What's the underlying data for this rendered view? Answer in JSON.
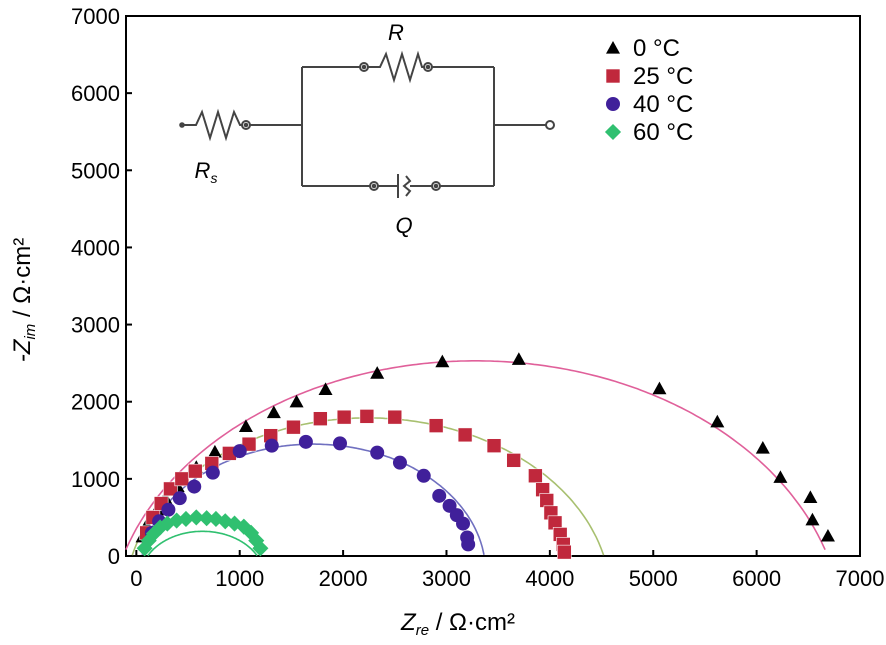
{
  "chart_data": {
    "type": "scatter",
    "xlabel": {
      "main": "Z",
      "sub": "re",
      "unit": " / Ω·cm²"
    },
    "ylabel": {
      "main": "-Z",
      "sub": "im",
      "unit": " / Ω·cm²"
    },
    "xlim": [
      -100,
      7000
    ],
    "ylim": [
      0,
      7000
    ],
    "xticks": [
      0,
      1000,
      2000,
      3000,
      4000,
      5000,
      6000,
      7000
    ],
    "yticks": [
      0,
      1000,
      2000,
      3000,
      4000,
      5000,
      6000,
      7000
    ],
    "grid": false,
    "legend_position": "top-right",
    "series": [
      {
        "name": "0 °C",
        "marker": "triangle",
        "color": "#000000",
        "fit_color": "#e0609a",
        "fit": {
          "cx": 3280,
          "cy": -1030,
          "r": 3560
        },
        "x": [
          60,
          100,
          150,
          200,
          280,
          400,
          580,
          760,
          1060,
          1330,
          1550,
          1830,
          2330,
          2960,
          3700,
          5060,
          5620,
          6060,
          6230,
          6520,
          6540,
          6690
        ],
        "y": [
          250,
          400,
          500,
          600,
          750,
          900,
          1150,
          1350,
          1680,
          1860,
          2000,
          2160,
          2370,
          2520,
          2550,
          2170,
          1740,
          1400,
          1020,
          760,
          470,
          260
        ]
      },
      {
        "name": "25 °C",
        "marker": "square",
        "color": "#c0283c",
        "fit_color": "#a8c070",
        "fit": {
          "cx": 2240,
          "cy": -560,
          "r": 2350
        },
        "x": [
          100,
          160,
          240,
          330,
          440,
          570,
          730,
          900,
          1090,
          1300,
          1520,
          1780,
          2010,
          2230,
          2500,
          2900,
          3180,
          3460,
          3650,
          3860,
          3930,
          3970,
          4010,
          4050,
          4100,
          4130,
          4140
        ],
        "y": [
          300,
          500,
          680,
          870,
          1000,
          1100,
          1200,
          1330,
          1450,
          1560,
          1670,
          1780,
          1800,
          1810,
          1800,
          1690,
          1570,
          1430,
          1240,
          1040,
          860,
          720,
          560,
          430,
          280,
          150,
          50
        ]
      },
      {
        "name": "40 °C",
        "marker": "circle",
        "color": "#40209a",
        "fit_color": "#7070c0",
        "fit": {
          "cx": 1710,
          "cy": -220,
          "r": 1670
        },
        "x": [
          150,
          220,
          310,
          420,
          560,
          740,
          1000,
          1310,
          1640,
          1970,
          2330,
          2550,
          2780,
          2930,
          3030,
          3100,
          3160,
          3200,
          3210
        ],
        "y": [
          300,
          450,
          600,
          750,
          900,
          1080,
          1360,
          1430,
          1480,
          1460,
          1340,
          1210,
          1040,
          780,
          650,
          530,
          420,
          240,
          150
        ]
      },
      {
        "name": "60 °C",
        "marker": "diamond",
        "color": "#30c070",
        "fit_color": "#30c070",
        "fit": {
          "cx": 640,
          "cy": -280,
          "r": 600
        },
        "x": [
          80,
          120,
          170,
          230,
          300,
          390,
          480,
          580,
          680,
          770,
          860,
          950,
          1040,
          1110,
          1160,
          1200
        ],
        "y": [
          100,
          200,
          290,
          370,
          420,
          460,
          480,
          500,
          490,
          480,
          450,
          420,
          380,
          300,
          200,
          100
        ]
      }
    ]
  },
  "circuit": {
    "label_R": "R",
    "label_Rs_main": "R",
    "label_Rs_sub": "s",
    "label_Q": "Q"
  }
}
